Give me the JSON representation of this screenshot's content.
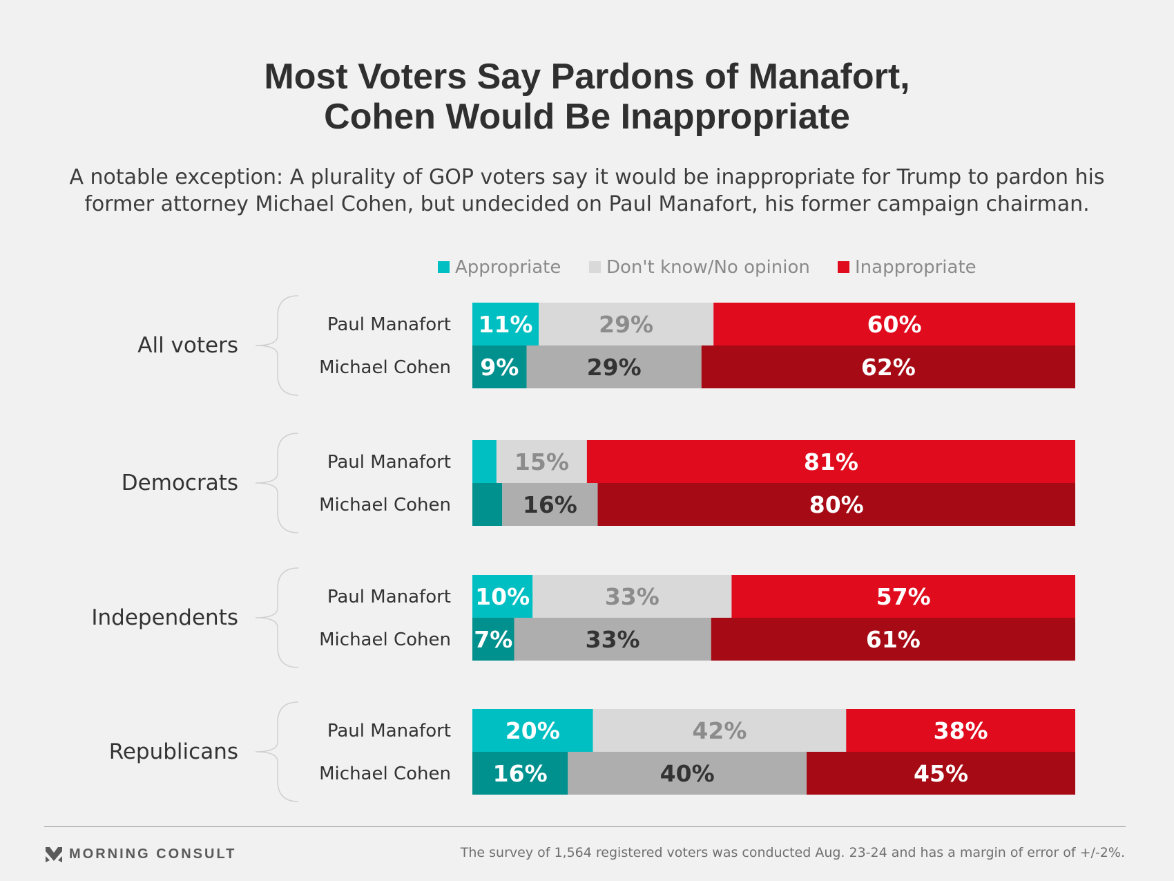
{
  "header": {
    "title_line1": "Most Voters Say Pardons of Manafort,",
    "title_line2": "Cohen Would Be Inappropriate",
    "subtitle_line1": "A notable exception: A plurality of GOP voters say it would be inappropriate for Trump to pardon his",
    "subtitle_line2": "former attorney Michael Cohen, but undecided on Paul Manafort, his former campaign chairman."
  },
  "colors": {
    "appropriate_manafort": "#00bfc2",
    "appropriate_cohen": "#00918e",
    "dontknow_manafort": "#d9d9d9",
    "dontknow_cohen": "#aeaeae",
    "inappropriate_manafort": "#e00b1c",
    "inappropriate_cohen": "#a60a14",
    "label_on_light_manafort": "#8c8c8c",
    "label_on_light_cohen": "#333333"
  },
  "chart_data": {
    "type": "bar",
    "orientation": "horizontal",
    "stacked": true,
    "legend_position": "top",
    "series": [
      {
        "name": "Appropriate"
      },
      {
        "name": "Don't know/No opinion"
      },
      {
        "name": "Inappropriate"
      }
    ],
    "groups": [
      {
        "name": "All voters",
        "rows": [
          {
            "label": "Paul Manafort",
            "values": [
              11,
              29,
              60
            ],
            "labels": [
              "11%",
              "29%",
              "60%"
            ]
          },
          {
            "label": "Michael Cohen",
            "values": [
              9,
              29,
              62
            ],
            "labels": [
              "9%",
              "29%",
              "62%"
            ]
          }
        ]
      },
      {
        "name": "Democrats",
        "rows": [
          {
            "label": "Paul Manafort",
            "values": [
              4,
              15,
              81
            ],
            "labels": [
              "",
              "15%",
              "81%"
            ]
          },
          {
            "label": "Michael Cohen",
            "values": [
              5,
              16,
              80
            ],
            "labels": [
              "",
              "16%",
              "80%"
            ]
          }
        ]
      },
      {
        "name": "Independents",
        "rows": [
          {
            "label": "Paul Manafort",
            "values": [
              10,
              33,
              57
            ],
            "labels": [
              "10%",
              "33%",
              "57%"
            ]
          },
          {
            "label": "Michael Cohen",
            "values": [
              7,
              33,
              61
            ],
            "labels": [
              "7%",
              "33%",
              "61%"
            ]
          }
        ]
      },
      {
        "name": "Republicans",
        "rows": [
          {
            "label": "Paul Manafort",
            "values": [
              20,
              42,
              38
            ],
            "labels": [
              "20%",
              "42%",
              "38%"
            ]
          },
          {
            "label": "Michael Cohen",
            "values": [
              16,
              40,
              45
            ],
            "labels": [
              "16%",
              "40%",
              "45%"
            ]
          }
        ]
      }
    ]
  },
  "footer": {
    "brand": "MORNING CONSULT",
    "note": "The survey of 1,564 registered voters was conducted Aug. 23-24 and has a margin of error of +/-2%."
  }
}
